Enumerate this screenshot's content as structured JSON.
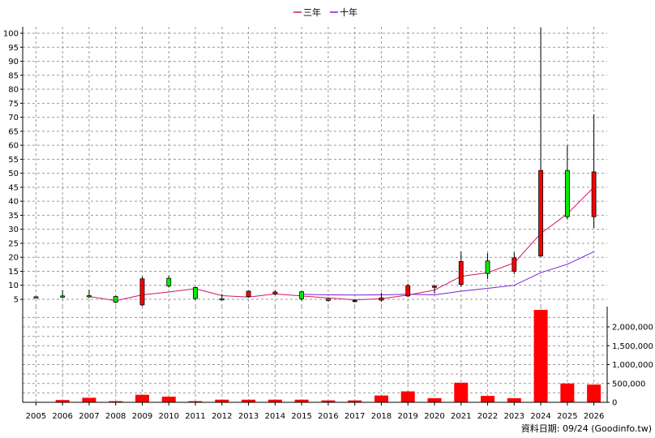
{
  "chart_data": [
    {
      "type": "candlestick",
      "legend": [
        {
          "name": "三年",
          "color": "#d6156c"
        },
        {
          "name": "十年",
          "color": "#7a1fd6"
        }
      ],
      "categories": [
        "2005",
        "2006",
        "2007",
        "2008",
        "2009",
        "2010",
        "2011",
        "2012",
        "2013",
        "2014",
        "2015",
        "2016",
        "2017",
        "2018",
        "2019",
        "2020",
        "2021",
        "2022",
        "2023",
        "2024",
        "2025",
        "2026"
      ],
      "ohlc": [
        {
          "year": "2005",
          "open": 5.9,
          "high": 6.1,
          "low": 5.4,
          "close": 5.6
        },
        {
          "year": "2006",
          "open": 6.2,
          "high": 8.2,
          "low": 5.4,
          "close": 6.0
        },
        {
          "year": "2007",
          "open": 6.3,
          "high": 8.4,
          "low": 5.4,
          "close": 6.0
        },
        {
          "year": "2008",
          "open": 6.0,
          "high": 6.3,
          "low": 3.6,
          "close": 4.0
        },
        {
          "year": "2009",
          "open": 3.0,
          "high": 13.1,
          "low": 2.6,
          "close": 12.3
        },
        {
          "year": "2010",
          "open": 12.5,
          "high": 13.4,
          "low": 9.2,
          "close": 9.8
        },
        {
          "year": "2011",
          "open": 9.2,
          "high": 9.6,
          "low": 4.7,
          "close": 5.3
        },
        {
          "year": "2012",
          "open": 5.2,
          "high": 6.9,
          "low": 4.6,
          "close": 5.0
        },
        {
          "year": "2013",
          "open": 6.0,
          "high": 8.1,
          "low": 5.6,
          "close": 7.9
        },
        {
          "year": "2014",
          "open": 6.9,
          "high": 8.3,
          "low": 6.5,
          "close": 7.6
        },
        {
          "year": "2015",
          "open": 7.7,
          "high": 7.9,
          "low": 4.5,
          "close": 5.2
        },
        {
          "year": "2016",
          "open": 5.1,
          "high": 5.4,
          "low": 4.1,
          "close": 4.6
        },
        {
          "year": "2017",
          "open": 4.5,
          "high": 4.9,
          "low": 3.9,
          "close": 4.6
        },
        {
          "year": "2018",
          "open": 4.7,
          "high": 7.3,
          "low": 4.1,
          "close": 5.5
        },
        {
          "year": "2019",
          "open": 6.2,
          "high": 10.6,
          "low": 5.8,
          "close": 9.9
        },
        {
          "year": "2020",
          "open": 9.7,
          "high": 10.3,
          "low": 7.0,
          "close": 9.7
        },
        {
          "year": "2021",
          "open": 10.3,
          "high": 22.0,
          "low": 9.5,
          "close": 18.5
        },
        {
          "year": "2022",
          "open": 18.7,
          "high": 21.5,
          "low": 12.2,
          "close": 14.2
        },
        {
          "year": "2023",
          "open": 15.0,
          "high": 21.8,
          "low": 14.0,
          "close": 19.8
        },
        {
          "year": "2024",
          "open": 20.5,
          "high": 102.0,
          "low": 20.0,
          "close": 51.0
        },
        {
          "year": "2025",
          "open": 51.0,
          "high": 60.0,
          "low": 33.5,
          "close": 34.5
        },
        {
          "year": "2026",
          "open": 34.5,
          "high": 71.0,
          "low": 30.5,
          "close": 50.5
        }
      ],
      "series": [
        {
          "name": "三年",
          "values": [
            null,
            null,
            6.0,
            4.5,
            6.6,
            7.6,
            8.8,
            6.3,
            5.8,
            6.9,
            6.2,
            5.5,
            4.8,
            5.2,
            6.5,
            8.3,
            13.2,
            14.5,
            18.0,
            28.5,
            35.5,
            45.0
          ]
        },
        {
          "name": "十年",
          "values": [
            null,
            null,
            null,
            null,
            null,
            null,
            null,
            null,
            null,
            null,
            6.8,
            6.6,
            6.5,
            6.6,
            6.8,
            6.6,
            7.9,
            8.9,
            10.0,
            14.5,
            17.5,
            22.0
          ]
        }
      ],
      "ylim": [
        0,
        100
      ],
      "yticks": [
        5,
        10,
        15,
        20,
        25,
        30,
        35,
        40,
        45,
        50,
        55,
        60,
        65,
        70,
        75,
        80,
        85,
        90,
        95,
        100
      ],
      "grid": true,
      "legend_position": "top-center"
    },
    {
      "type": "bar",
      "categories": [
        "2005",
        "2006",
        "2007",
        "2008",
        "2009",
        "2010",
        "2011",
        "2012",
        "2013",
        "2014",
        "2015",
        "2016",
        "2017",
        "2018",
        "2019",
        "2020",
        "2021",
        "2022",
        "2023",
        "2024",
        "2025",
        "2026"
      ],
      "values": [
        5000,
        60000,
        120000,
        30000,
        200000,
        150000,
        30000,
        70000,
        70000,
        70000,
        70000,
        50000,
        50000,
        180000,
        290000,
        110000,
        520000,
        170000,
        110000,
        2450000,
        500000,
        470000
      ],
      "color": "#ff0000",
      "ylim": [
        0,
        2500000
      ],
      "yticks": [
        "0",
        "500,000",
        "1,000,000",
        "1,500,000",
        "2,000,000"
      ],
      "grid": true
    }
  ],
  "footer": {
    "source_text": "資料日期: 09/24  (Goodinfo.tw)"
  }
}
